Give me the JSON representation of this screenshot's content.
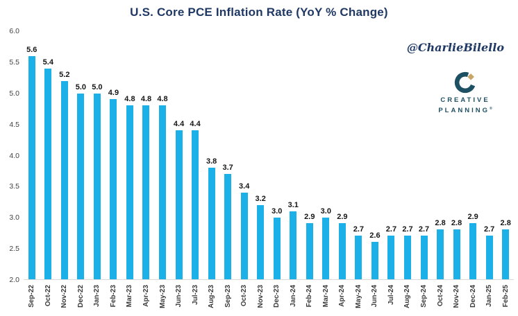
{
  "chart_data": {
    "type": "bar",
    "title": "U.S. Core PCE Inflation Rate (YoY % Change)",
    "categories": [
      "Sep-22",
      "Oct-22",
      "Nov-22",
      "Dec-22",
      "Jan-23",
      "Feb-23",
      "Mar-23",
      "Apr-23",
      "May-23",
      "Jun-23",
      "Jul-23",
      "Aug-23",
      "Sep-23",
      "Oct-23",
      "Nov-23",
      "Dec-23",
      "Jan-24",
      "Feb-24",
      "Mar-24",
      "Apr-24",
      "May-24",
      "Jun-24",
      "Jul-24",
      "Aug-24",
      "Sep-24",
      "Oct-24",
      "Nov-24",
      "Dec-24",
      "Jan-25",
      "Feb-25"
    ],
    "values": [
      5.6,
      5.4,
      5.2,
      5.0,
      5.0,
      4.9,
      4.8,
      4.8,
      4.8,
      4.4,
      4.4,
      3.8,
      3.7,
      3.4,
      3.2,
      3.0,
      3.1,
      2.9,
      3.0,
      2.9,
      2.7,
      2.6,
      2.7,
      2.7,
      2.7,
      2.8,
      2.8,
      2.9,
      2.7,
      2.8
    ],
    "xlabel": "",
    "ylabel": "",
    "ylim": [
      2.0,
      6.0
    ],
    "yticks": [
      2.0,
      2.5,
      3.0,
      3.5,
      4.0,
      4.5,
      5.0,
      5.5,
      6.0
    ],
    "grid": false,
    "legend": false,
    "data_labels": true,
    "bar_color": "#1cb0e8"
  },
  "annotations": {
    "handle": "@CharlieBilello"
  },
  "logo": {
    "line1": "CREATIVE",
    "line2": "PLANNING",
    "mark": "®",
    "text_color": "#1e5064",
    "diamond_color": "#c7a667"
  },
  "colors": {
    "title": "#1f3864",
    "bar": "#1cb0e8",
    "axis_line": "#d9d9d9",
    "tick_text": "#404040",
    "data_label": "#151515",
    "background": "#ffffff"
  }
}
